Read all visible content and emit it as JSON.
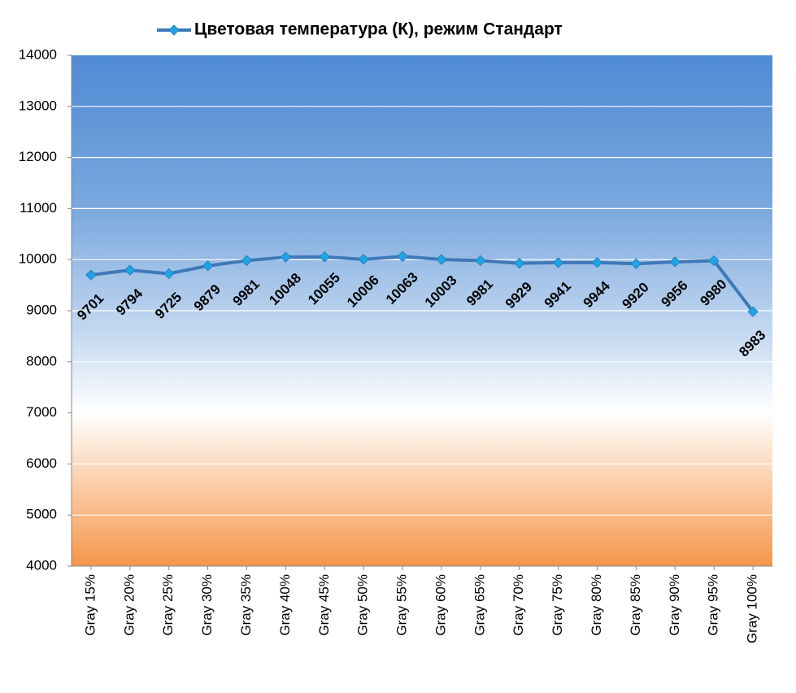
{
  "chart_data": {
    "type": "line",
    "categories": [
      "Gray 15%",
      "Gray 20%",
      "Gray 25%",
      "Gray 30%",
      "Gray 35%",
      "Gray 40%",
      "Gray 45%",
      "Gray 50%",
      "Gray 55%",
      "Gray 60%",
      "Gray 65%",
      "Gray 70%",
      "Gray 75%",
      "Gray 80%",
      "Gray 85%",
      "Gray 90%",
      "Gray 95%",
      "Gray 100%"
    ],
    "series": [
      {
        "name": "Цветовая температура (К), режим Стандарт",
        "color": "#3f78b8",
        "marker_color": "#1ea5e6",
        "values": [
          9701,
          9794,
          9725,
          9879,
          9981,
          10048,
          10055,
          10006,
          10063,
          10003,
          9981,
          9929,
          9941,
          9944,
          9920,
          9956,
          9980,
          8983
        ]
      }
    ],
    "ylim": [
      4000,
      14000
    ],
    "yticks": [
      4000,
      5000,
      6000,
      7000,
      8000,
      9000,
      10000,
      11000,
      12000,
      13000,
      14000
    ],
    "grid": true,
    "legend": "top"
  }
}
